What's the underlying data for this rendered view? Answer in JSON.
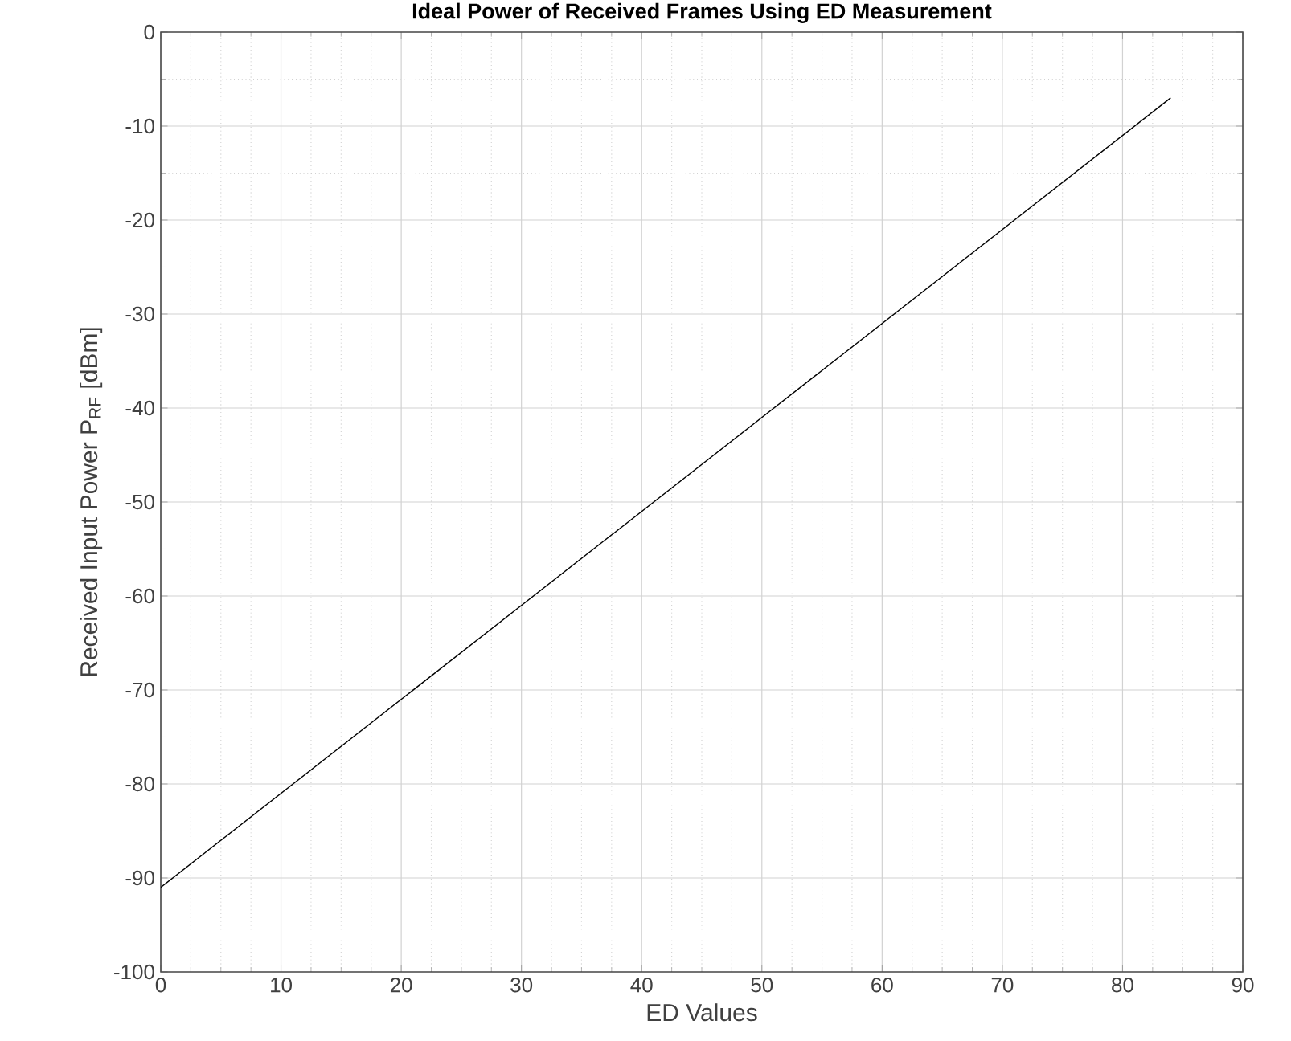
{
  "chart_data": {
    "type": "line",
    "title": "Ideal Power of Received Frames Using ED Measurement",
    "xlabel": "ED Values",
    "ylabel": "Received Input Power P$_{RF}$ [dBm]",
    "x": [
      0,
      84
    ],
    "series": [
      {
        "color": "#000000",
        "values": [
          -91,
          -7
        ]
      }
    ],
    "xlim": [
      0,
      90
    ],
    "ylim": [
      -100,
      0
    ],
    "xticks": [
      0,
      10,
      20,
      30,
      40,
      50,
      60,
      70,
      80,
      90
    ],
    "yticks": [
      -100,
      -90,
      -80,
      -70,
      -60,
      -50,
      -40,
      -30,
      -20,
      -10,
      0
    ],
    "grid": true,
    "marker": "none",
    "line_style": "solid"
  }
}
